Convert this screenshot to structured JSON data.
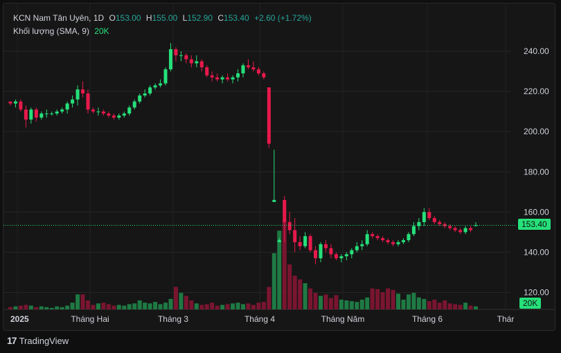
{
  "legend": {
    "symbol": "KCN Nam Tân Uyên, 1D",
    "open_label": "O",
    "open": "153.00",
    "high_label": "H",
    "high": "155.00",
    "low_label": "L",
    "low": "152.90",
    "close_label": "C",
    "close": "153.40",
    "change": "+2.60 (+1.72%)",
    "volume_label": "Khối lượng (SMA, 9)",
    "volume_value": "20K"
  },
  "badges": {
    "price": "153.40",
    "volume": "20K"
  },
  "brand": {
    "name": "TradingView",
    "logo": "17"
  },
  "colors": {
    "up": "#26e07a",
    "down": "#e8194b",
    "up_vol": "#1f7a44",
    "down_vol": "#7a1530",
    "badge": "#26e07a"
  },
  "chart_data": {
    "type": "candlestick",
    "x_labels": [
      "2025",
      "Tháng Hai",
      "Tháng 3",
      "Tháng 4",
      "Tháng Năm",
      "Tháng 6",
      "Thár"
    ],
    "y_ticks": [
      "240.00",
      "220.00",
      "200.00",
      "180.00",
      "160.00",
      "140.00",
      "120.00"
    ],
    "ylim": [
      115,
      250
    ],
    "last_price": 153.4,
    "candles": [
      [
        215,
        215,
        213,
        214
      ],
      [
        214,
        216,
        212,
        215
      ],
      [
        215,
        216,
        210,
        211
      ],
      [
        211,
        213,
        202,
        206
      ],
      [
        206,
        212,
        204,
        211
      ],
      [
        211,
        212,
        205,
        207
      ],
      [
        207,
        210,
        206,
        209
      ],
      [
        209,
        211,
        207,
        209
      ],
      [
        209,
        210,
        208,
        209
      ],
      [
        209,
        211,
        208,
        210
      ],
      [
        210,
        212,
        209,
        211
      ],
      [
        211,
        215,
        209,
        214
      ],
      [
        214,
        218,
        212,
        216
      ],
      [
        216,
        223,
        213,
        221
      ],
      [
        221,
        225,
        217,
        219
      ],
      [
        219,
        221,
        209,
        211
      ],
      [
        211,
        212,
        209,
        210
      ],
      [
        210,
        212,
        208,
        210
      ],
      [
        210,
        211,
        208,
        209
      ],
      [
        209,
        210,
        207,
        208
      ],
      [
        208,
        209,
        206,
        207
      ],
      [
        207,
        209,
        206,
        208
      ],
      [
        208,
        210,
        207,
        209
      ],
      [
        209,
        213,
        208,
        212
      ],
      [
        212,
        216,
        211,
        215
      ],
      [
        215,
        219,
        214,
        218
      ],
      [
        218,
        221,
        217,
        219
      ],
      [
        219,
        223,
        218,
        222
      ],
      [
        222,
        224,
        221,
        223
      ],
      [
        223,
        226,
        222,
        224
      ],
      [
        224,
        232,
        223,
        231
      ],
      [
        231,
        244,
        230,
        241
      ],
      [
        241,
        242,
        235,
        238
      ],
      [
        238,
        240,
        235,
        238
      ],
      [
        238,
        239,
        234,
        236
      ],
      [
        236,
        238,
        232,
        234
      ],
      [
        234,
        238,
        232,
        235
      ],
      [
        235,
        236,
        230,
        232
      ],
      [
        232,
        233,
        227,
        228
      ],
      [
        228,
        230,
        225,
        227
      ],
      [
        227,
        229,
        225,
        226
      ],
      [
        226,
        228,
        224,
        227
      ],
      [
        227,
        229,
        225,
        226
      ],
      [
        226,
        228,
        224,
        227
      ],
      [
        227,
        231,
        225,
        229
      ],
      [
        229,
        234,
        227,
        233
      ],
      [
        233,
        236,
        231,
        232
      ],
      [
        232,
        235,
        230,
        231
      ],
      [
        231,
        232,
        228,
        229
      ],
      [
        229,
        230,
        226,
        227
      ],
      [
        222,
        222,
        192,
        194
      ],
      [
        165,
        191,
        165,
        166
      ],
      [
        145,
        147,
        145,
        146
      ],
      [
        166,
        168,
        145,
        155
      ],
      [
        155,
        160,
        149,
        151
      ],
      [
        151,
        157,
        140,
        145
      ],
      [
        145,
        148,
        141,
        143
      ],
      [
        143,
        150,
        142,
        148
      ],
      [
        148,
        149,
        140,
        141
      ],
      [
        141,
        143,
        134,
        137
      ],
      [
        137,
        145,
        135,
        144
      ],
      [
        144,
        146,
        140,
        142
      ],
      [
        142,
        144,
        137,
        139
      ],
      [
        139,
        140,
        136,
        137
      ],
      [
        137,
        139,
        135,
        138
      ],
      [
        138,
        140,
        136,
        139
      ],
      [
        139,
        142,
        137,
        141
      ],
      [
        141,
        145,
        140,
        143
      ],
      [
        143,
        146,
        141,
        144
      ],
      [
        144,
        151,
        143,
        149
      ],
      [
        149,
        150,
        147,
        148
      ],
      [
        148,
        149,
        146,
        147
      ],
      [
        147,
        148,
        145,
        146
      ],
      [
        146,
        147,
        144,
        145
      ],
      [
        145,
        146,
        143,
        144
      ],
      [
        144,
        146,
        143,
        145
      ],
      [
        145,
        147,
        144,
        146
      ],
      [
        146,
        150,
        145,
        149
      ],
      [
        149,
        155,
        148,
        153
      ],
      [
        153,
        157,
        151,
        155
      ],
      [
        155,
        162,
        153,
        160
      ],
      [
        160,
        162,
        156,
        157
      ],
      [
        157,
        158,
        154,
        155
      ],
      [
        155,
        156,
        153,
        154
      ],
      [
        154,
        155,
        152,
        153
      ],
      [
        153,
        154,
        151,
        152
      ],
      [
        152,
        153,
        150,
        151
      ],
      [
        151,
        152,
        149,
        150
      ],
      [
        150,
        153,
        149,
        152
      ],
      [
        152,
        153,
        150,
        151
      ],
      [
        153,
        155,
        152.9,
        153.4
      ]
    ],
    "volumes": [
      3,
      4,
      5,
      6,
      5,
      3,
      4,
      3,
      2,
      4,
      3,
      5,
      9,
      20,
      20,
      12,
      6,
      8,
      9,
      7,
      5,
      6,
      5,
      7,
      8,
      12,
      9,
      8,
      10,
      7,
      9,
      14,
      30,
      22,
      18,
      12,
      8,
      6,
      7,
      9,
      5,
      6,
      7,
      8,
      9,
      7,
      8,
      6,
      9,
      10,
      30,
      75,
      105,
      120,
      60,
      45,
      40,
      35,
      28,
      22,
      18,
      20,
      15,
      19,
      13,
      12,
      11,
      10,
      13,
      16,
      28,
      27,
      23,
      28,
      26,
      21,
      13,
      20,
      22,
      16,
      14,
      11,
      13,
      9,
      12,
      8,
      7,
      6,
      9,
      5,
      4
    ]
  }
}
